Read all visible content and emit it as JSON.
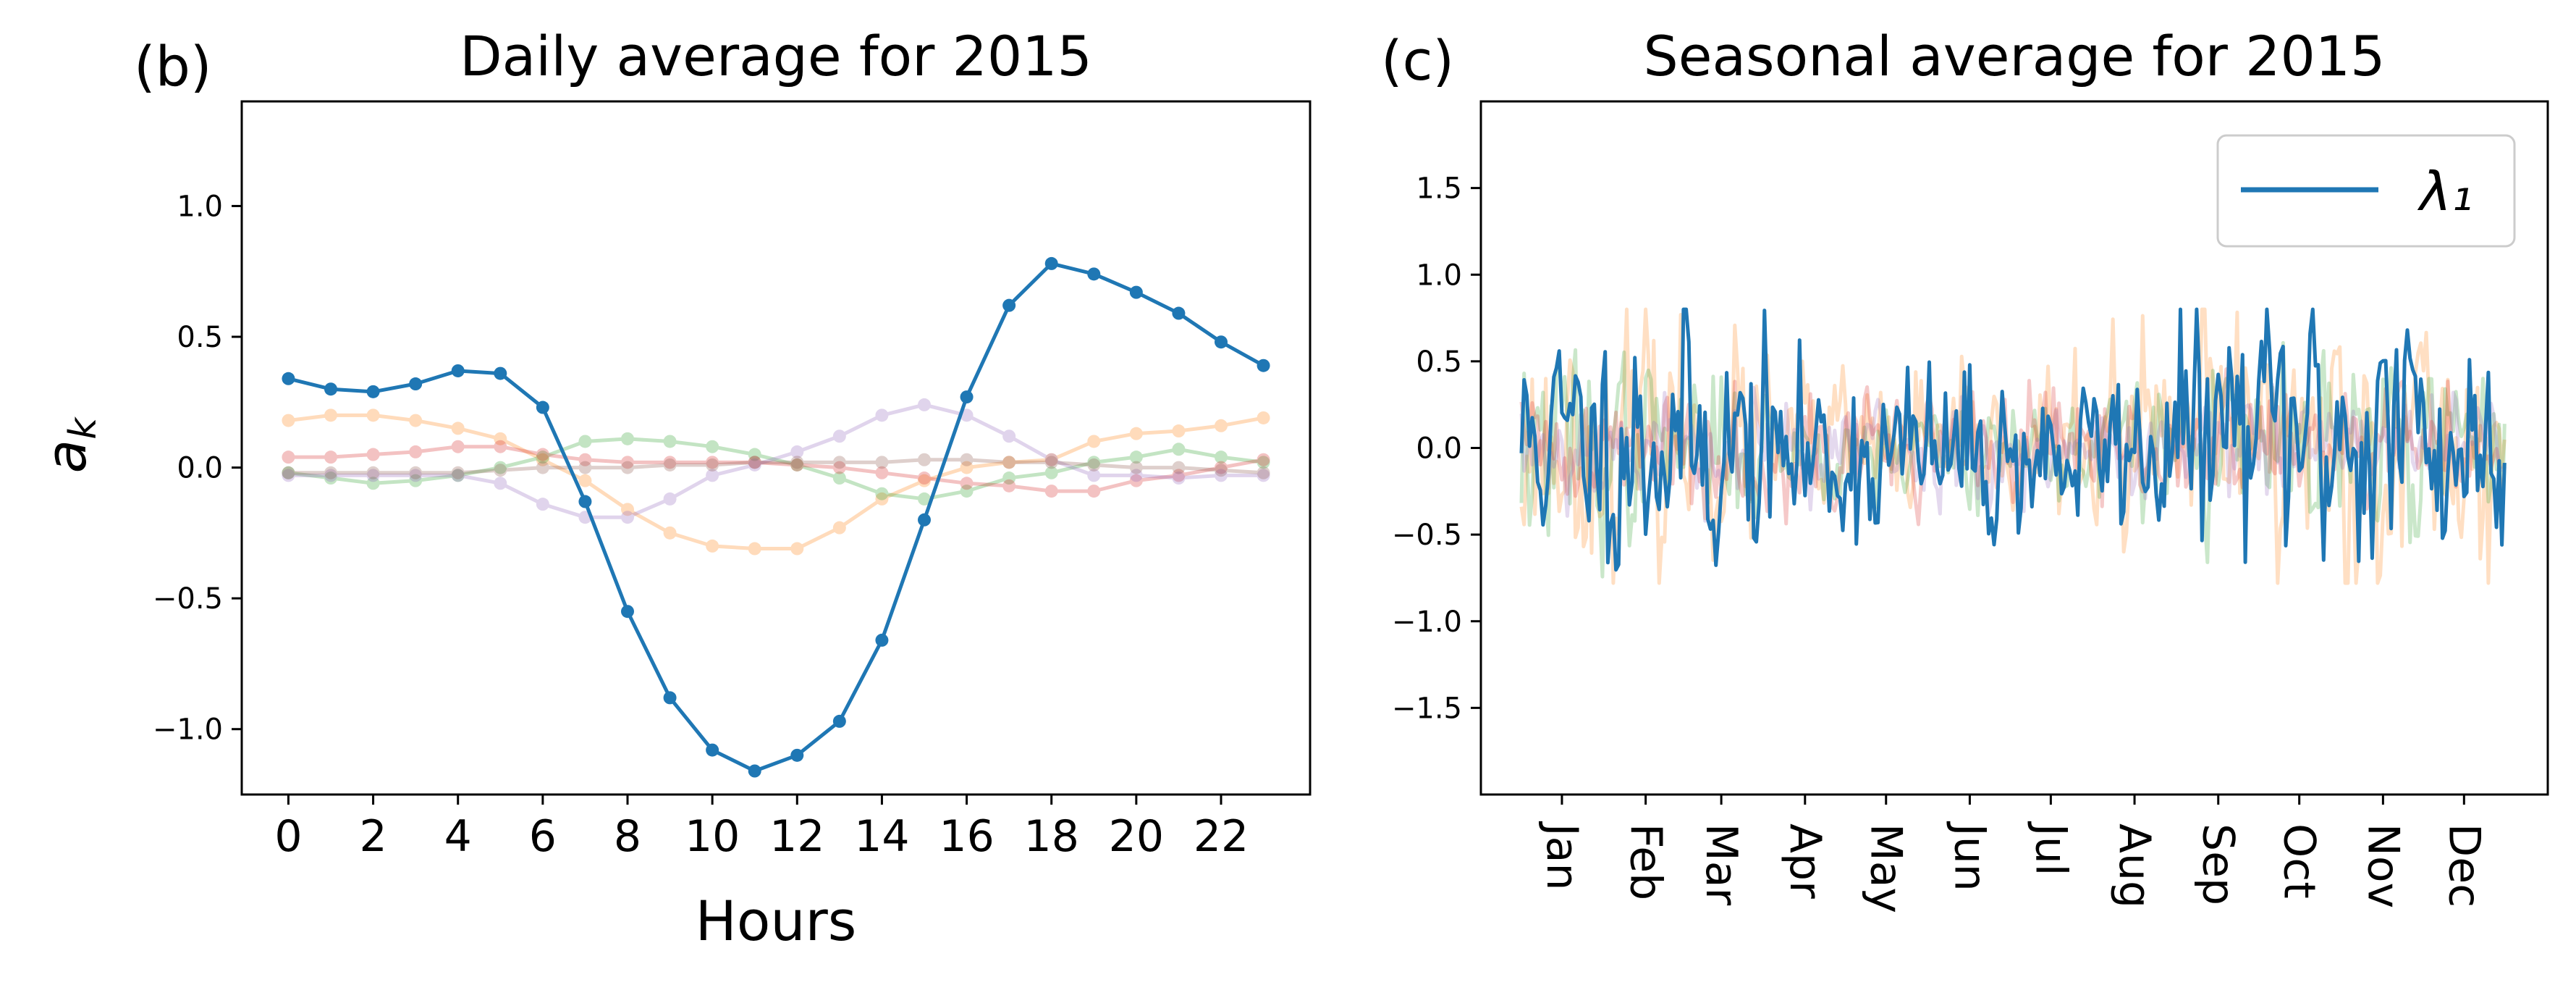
{
  "chart_data": [
    {
      "panel": "(b)",
      "type": "line",
      "title": "Daily average for 2015",
      "xlabel": "Hours",
      "ylabel": "a_k",
      "xlim": [
        -1.1,
        24.1
      ],
      "ylim": [
        -1.25,
        1.4
      ],
      "xticks": [
        0,
        2,
        4,
        6,
        8,
        10,
        12,
        14,
        16,
        18,
        20,
        22
      ],
      "yticks": [
        1.0,
        0.5,
        0.0,
        -0.5,
        -1.0
      ],
      "ytick_labels": [
        "1.0",
        "0.5",
        "0.0",
        "−0.5",
        "−1.0"
      ],
      "grid": false,
      "x": [
        0,
        1,
        2,
        3,
        4,
        5,
        6,
        7,
        8,
        9,
        10,
        11,
        12,
        13,
        14,
        15,
        16,
        17,
        18,
        19,
        20,
        21,
        22,
        23
      ],
      "series": [
        {
          "color": "#1f77b4",
          "opacity": 1.0,
          "values": [
            0.34,
            0.3,
            0.29,
            0.32,
            0.37,
            0.36,
            0.23,
            -0.13,
            -0.55,
            -0.88,
            -1.08,
            -1.16,
            -1.1,
            -0.97,
            -0.66,
            -0.2,
            0.27,
            0.62,
            0.78,
            0.74,
            0.67,
            0.59,
            0.48,
            0.39
          ]
        },
        {
          "color": "#ff7f0e",
          "opacity": 0.28,
          "values": [
            0.18,
            0.2,
            0.2,
            0.18,
            0.15,
            0.11,
            0.03,
            -0.05,
            -0.16,
            -0.25,
            -0.3,
            -0.31,
            -0.31,
            -0.23,
            -0.12,
            -0.05,
            0.0,
            0.02,
            0.03,
            0.1,
            0.13,
            0.14,
            0.16,
            0.19
          ]
        },
        {
          "color": "#2ca02c",
          "opacity": 0.28,
          "values": [
            -0.02,
            -0.04,
            -0.06,
            -0.05,
            -0.03,
            0.0,
            0.04,
            0.1,
            0.11,
            0.1,
            0.08,
            0.05,
            0.01,
            -0.04,
            -0.1,
            -0.12,
            -0.09,
            -0.04,
            -0.02,
            0.02,
            0.04,
            0.07,
            0.04,
            0.02
          ]
        },
        {
          "color": "#d62728",
          "opacity": 0.28,
          "values": [
            0.04,
            0.04,
            0.05,
            0.06,
            0.08,
            0.08,
            0.05,
            0.03,
            0.02,
            0.02,
            0.02,
            0.02,
            0.01,
            0.0,
            -0.02,
            -0.04,
            -0.06,
            -0.07,
            -0.09,
            -0.09,
            -0.05,
            -0.03,
            0.0,
            0.03
          ]
        },
        {
          "color": "#9467bd",
          "opacity": 0.28,
          "values": [
            -0.03,
            -0.03,
            -0.03,
            -0.03,
            -0.03,
            -0.06,
            -0.14,
            -0.19,
            -0.19,
            -0.12,
            -0.03,
            0.01,
            0.06,
            0.12,
            0.2,
            0.24,
            0.2,
            0.12,
            0.03,
            -0.03,
            -0.03,
            -0.04,
            -0.03,
            -0.03
          ]
        },
        {
          "color": "#8c564b",
          "opacity": 0.28,
          "values": [
            -0.02,
            -0.02,
            -0.02,
            -0.02,
            -0.02,
            -0.01,
            0.0,
            0.0,
            0.0,
            0.01,
            0.01,
            0.02,
            0.02,
            0.02,
            0.02,
            0.03,
            0.03,
            0.02,
            0.02,
            0.01,
            0.0,
            0.0,
            -0.01,
            -0.02
          ]
        }
      ]
    },
    {
      "panel": "(c)",
      "type": "line",
      "title": "Seasonal average for 2015",
      "xlabel": "",
      "ylabel": "",
      "xlim": [
        -15,
        380
      ],
      "ylim": [
        -2.0,
        2.0
      ],
      "xticks": [
        15,
        46,
        74,
        105,
        135,
        166,
        196,
        227,
        258,
        288,
        319,
        349
      ],
      "xtick_labels": [
        "Jan",
        "Feb",
        "Mar",
        "Apr",
        "May",
        "Jun",
        "Jul",
        "Aug",
        "Sep",
        "Oct",
        "Nov",
        "Dec"
      ],
      "yticks": [
        1.5,
        1.0,
        0.5,
        0.0,
        -0.5,
        -1.0,
        -1.5
      ],
      "ytick_labels": [
        "1.5",
        "1.0",
        "0.5",
        "0.0",
        "−0.5",
        "−1.0",
        "−1.5"
      ],
      "grid": false,
      "legend": {
        "position": "top-right",
        "entries": [
          "λ₁"
        ]
      },
      "n_days": 365,
      "series": [
        {
          "name": "λ₁",
          "color": "#1f77b4",
          "opacity": 1.0,
          "stroke": 5,
          "amplitude": 0.36,
          "envelope": [
            0.8,
            1.0,
            0.9,
            0.7,
            0.7,
            0.7,
            0.6,
            0.7,
            0.9,
            1.1,
            1.1,
            0.9
          ],
          "bias": [
            0.05,
            0.08,
            0.0,
            -0.05,
            -0.05,
            -0.05,
            -0.05,
            0.0,
            0.1,
            0.1,
            0.1,
            0.0
          ],
          "seed": 11
        },
        {
          "color": "#ff7f0e",
          "opacity": 0.25,
          "stroke": 5,
          "amplitude": 0.34,
          "envelope": [
            0.9,
            1.0,
            0.8,
            0.6,
            0.6,
            0.5,
            0.6,
            0.9,
            1.1,
            1.2,
            1.0,
            1.0
          ],
          "bias": [
            0,
            0,
            0,
            0,
            0,
            0,
            0,
            0,
            0.05,
            0.05,
            0,
            0
          ],
          "seed": 23
        },
        {
          "color": "#2ca02c",
          "opacity": 0.25,
          "stroke": 5,
          "amplitude": 0.24,
          "envelope": [
            1.2,
            1.0,
            0.8,
            0.6,
            0.6,
            0.6,
            0.7,
            0.8,
            0.9,
            1.0,
            1.1,
            1.0
          ],
          "bias": [
            0,
            0,
            0,
            0,
            0,
            0,
            0,
            0,
            0,
            0,
            0,
            0
          ],
          "seed": 37
        },
        {
          "color": "#d62728",
          "opacity": 0.25,
          "stroke": 5,
          "amplitude": 0.16,
          "envelope": [
            1,
            1,
            1,
            1,
            1,
            1,
            1,
            1,
            1,
            1,
            1,
            1
          ],
          "bias": [
            0,
            0,
            0,
            0,
            0,
            0,
            0,
            0,
            0,
            0,
            0,
            0
          ],
          "seed": 41
        },
        {
          "color": "#9467bd",
          "opacity": 0.25,
          "stroke": 5,
          "amplitude": 0.14,
          "envelope": [
            1,
            1,
            1,
            1,
            1,
            1,
            1,
            1,
            1,
            1,
            1,
            1
          ],
          "bias": [
            0,
            0,
            0,
            0,
            0,
            0,
            0,
            0,
            0,
            0,
            0,
            0
          ],
          "seed": 53
        }
      ]
    }
  ]
}
